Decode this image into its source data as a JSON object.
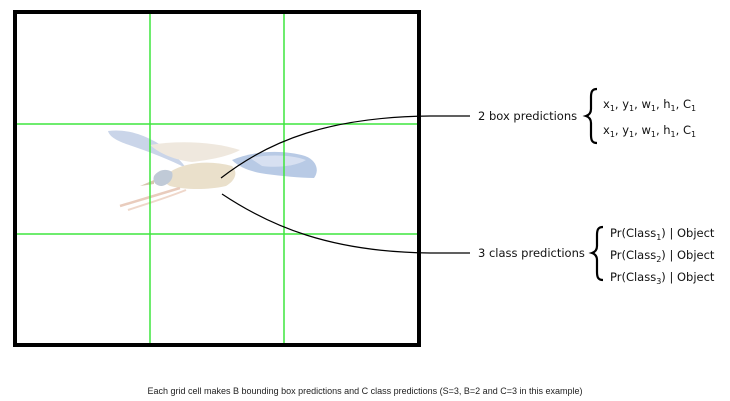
{
  "colors": {
    "grid_line": "#3ee53e",
    "frame": "#000000",
    "connector": "#000000",
    "bird_body": "#d8c9a8",
    "bird_wing": "#8fa9d6"
  },
  "image": {
    "subject": "bird-in-flight"
  },
  "grid": {
    "rows": 3,
    "cols": 3
  },
  "box_predictions": {
    "label": "2 box predictions",
    "items": [
      {
        "x": "x",
        "x_sub": "1",
        "y": "y",
        "y_sub": "1",
        "w": "w",
        "w_sub": "1",
        "h": "h",
        "h_sub": "1",
        "c": "C",
        "c_sub": "1"
      },
      {
        "x": "x",
        "x_sub": "1",
        "y": "y",
        "y_sub": "1",
        "w": "w",
        "w_sub": "1",
        "h": "h",
        "h_sub": "1",
        "c": "C",
        "c_sub": "1"
      }
    ]
  },
  "class_predictions": {
    "label": "3 class predictions",
    "items": [
      {
        "prefix": "Pr(Class",
        "sub": "1",
        "suffix": ") | Object"
      },
      {
        "prefix": "Pr(Class",
        "sub": "2",
        "suffix": ") | Object"
      },
      {
        "prefix": "Pr(Class",
        "sub": "3",
        "suffix": ") | Object"
      }
    ]
  },
  "caption": "Each grid cell makes B bounding box predictions and C class predictions (S=3, B=2 and C=3 in this example)"
}
